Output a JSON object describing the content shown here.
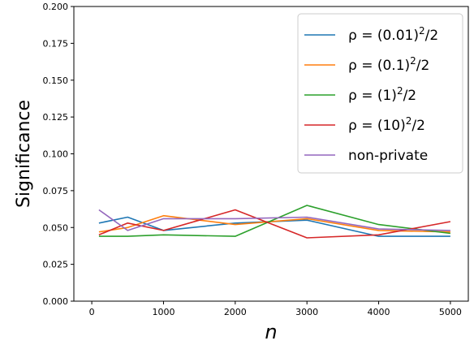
{
  "chart_data": {
    "type": "line",
    "xlabel": "n",
    "ylabel": "Significance",
    "xlim": [
      -250,
      5250
    ],
    "ylim": [
      0.0,
      0.2
    ],
    "xticks": [
      0,
      1000,
      2000,
      3000,
      4000,
      5000
    ],
    "xtick_labels": [
      "0",
      "1000",
      "2000",
      "3000",
      "4000",
      "5000"
    ],
    "yticks": [
      0.0,
      0.025,
      0.05,
      0.075,
      0.1,
      0.125,
      0.15,
      0.175,
      0.2
    ],
    "ytick_labels": [
      "0.000",
      "0.025",
      "0.050",
      "0.075",
      "0.100",
      "0.125",
      "0.150",
      "0.175",
      "0.200"
    ],
    "grid": false,
    "legend_position": "top-right",
    "x": [
      100,
      500,
      1000,
      2000,
      3000,
      4000,
      5000
    ],
    "series": [
      {
        "name": "ρ = (0.01)²/2",
        "legend": {
          "prefix": "ρ = (0.01)",
          "sup": "2",
          "suffix": "/2"
        },
        "color": "#1f77b4",
        "values": [
          0.053,
          0.057,
          0.048,
          0.053,
          0.055,
          0.044,
          0.044
        ]
      },
      {
        "name": "ρ = (0.1)²/2",
        "legend": {
          "prefix": "ρ = (0.1)",
          "sup": "2",
          "suffix": "/2"
        },
        "color": "#ff7f0e",
        "values": [
          0.047,
          0.05,
          0.058,
          0.052,
          0.056,
          0.048,
          0.047
        ]
      },
      {
        "name": "ρ = (1)²/2",
        "legend": {
          "prefix": "ρ = (1)",
          "sup": "2",
          "suffix": "/2"
        },
        "color": "#2ca02c",
        "values": [
          0.044,
          0.044,
          0.045,
          0.044,
          0.065,
          0.052,
          0.046
        ]
      },
      {
        "name": "ρ = (10)²/2",
        "legend": {
          "prefix": "ρ = (10)",
          "sup": "2",
          "suffix": "/2"
        },
        "color": "#d62728",
        "values": [
          0.045,
          0.053,
          0.048,
          0.062,
          0.043,
          0.045,
          0.054
        ]
      },
      {
        "name": "non-private",
        "legend": {
          "prefix": "non-private",
          "sup": "",
          "suffix": ""
        },
        "color": "#9467bd",
        "values": [
          0.062,
          0.048,
          0.056,
          0.056,
          0.057,
          0.049,
          0.048
        ]
      }
    ]
  }
}
